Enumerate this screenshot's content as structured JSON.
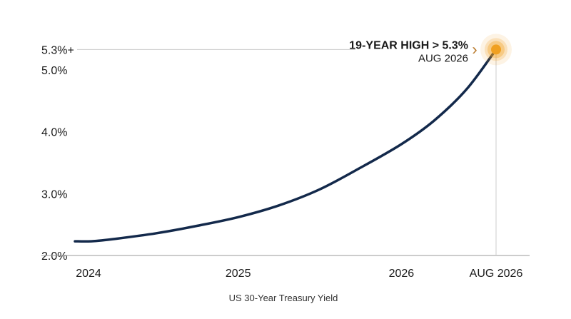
{
  "chart_data": {
    "type": "line",
    "title": "",
    "xlabel": "US 30-Year Treasury Yield",
    "ylabel": "",
    "x_ticks": [
      {
        "x": 2024.0,
        "label": "2024"
      },
      {
        "x": 2025.0,
        "label": "2025"
      },
      {
        "x": 2026.0,
        "label": "2026"
      },
      {
        "x": 2026.58,
        "label": "AUG 2026"
      }
    ],
    "y_ticks": [
      {
        "y": 2.0,
        "label": "2.0%"
      },
      {
        "y": 3.0,
        "label": "3.0%"
      },
      {
        "y": 4.0,
        "label": "4.0%"
      },
      {
        "y": 5.0,
        "label": "5.0%"
      },
      {
        "y": 5.33,
        "label": "5.3%+"
      }
    ],
    "xlim": [
      2024.0,
      2026.75
    ],
    "ylim": [
      2.0,
      5.4
    ],
    "grid": false,
    "colors": {
      "line": "#13294b",
      "highlight": "#f0a020",
      "arrow": "#b8792a",
      "guide": "#cccccc",
      "axis": "#999999"
    },
    "series": [
      {
        "x": [
          2024.0,
          2024.1,
          2024.25,
          2024.5,
          2024.75,
          2025.0,
          2025.25,
          2025.5,
          2025.75,
          2026.0,
          2026.2,
          2026.4,
          2026.58
        ],
        "y": [
          2.23,
          2.23,
          2.27,
          2.36,
          2.48,
          2.62,
          2.81,
          3.07,
          3.42,
          3.8,
          4.18,
          4.69,
          5.33
        ]
      }
    ],
    "annotation": {
      "x": 2026.58,
      "y": 5.33,
      "title": "19-YEAR HIGH > 5.3%",
      "subtitle": "AUG 2026",
      "arrow": "›"
    }
  }
}
